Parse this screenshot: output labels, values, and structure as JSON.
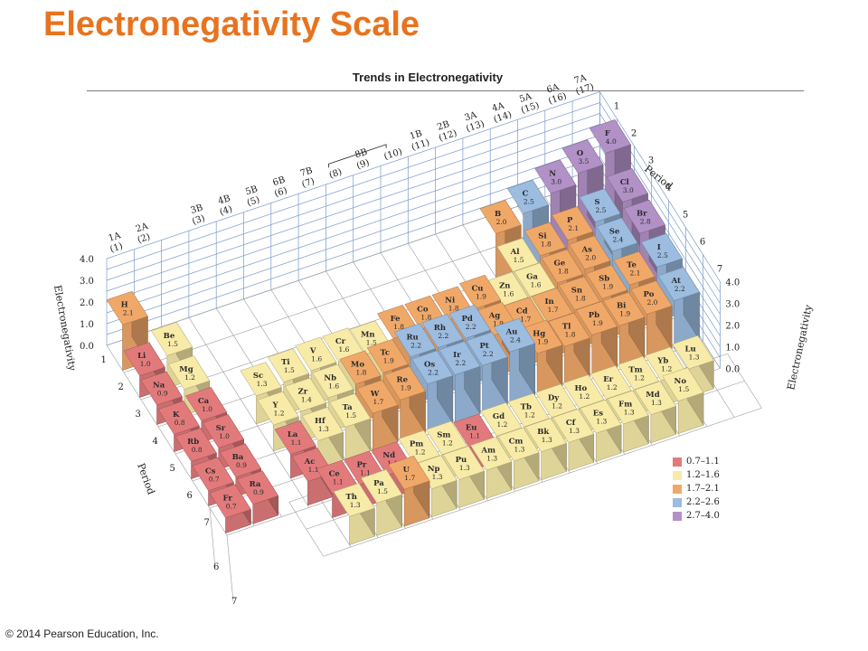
{
  "slide": {
    "title": "Electronegativity Scale",
    "copyright": "© 2014 Pearson Education, Inc."
  },
  "figure": {
    "title": "Trends in Electronegativity",
    "group_labels": [
      {
        "top": "1A",
        "bottom": "(1)"
      },
      {
        "top": "2A",
        "bottom": "(2)"
      },
      {
        "top": "3B",
        "bottom": "(3)"
      },
      {
        "top": "4B",
        "bottom": "(4)"
      },
      {
        "top": "5B",
        "bottom": "(5)"
      },
      {
        "top": "6B",
        "bottom": "(6)"
      },
      {
        "top": "7B",
        "bottom": "(7)"
      },
      {
        "top": "",
        "bottom": "(8)"
      },
      {
        "top": "8B",
        "bottom": "(9)"
      },
      {
        "top": "",
        "bottom": "(10)"
      },
      {
        "top": "1B",
        "bottom": "(11)"
      },
      {
        "top": "2B",
        "bottom": "(12)"
      },
      {
        "top": "3A",
        "bottom": "(13)"
      },
      {
        "top": "4A",
        "bottom": "(14)"
      },
      {
        "top": "5A",
        "bottom": "(15)"
      },
      {
        "top": "6A",
        "bottom": "(16)"
      },
      {
        "top": "7A",
        "bottom": "(17)"
      }
    ],
    "axis_labels": {
      "electronegativity_left": "Electronegativity",
      "electronegativity_right": "Electronegativity",
      "period_left": "Period",
      "period_back": "Period"
    },
    "axis_ticks": {
      "electronegativity": [
        "4.0",
        "3.0",
        "2.0",
        "1.0",
        "0.0"
      ],
      "period_left": [
        "1",
        "2",
        "3",
        "4",
        "5",
        "6",
        "7"
      ],
      "period_lower": [
        "6",
        "7"
      ],
      "period_back": [
        "1",
        "2",
        "3",
        "4",
        "5",
        "6",
        "7"
      ]
    },
    "legend": [
      {
        "label": "0.7–1.1",
        "color": "#e27a7c"
      },
      {
        "label": "1.2–1.6",
        "color": "#f8eba8"
      },
      {
        "label": "1.7–2.1",
        "color": "#f0a869"
      },
      {
        "label": "2.2–2.6",
        "color": "#9cbce0"
      },
      {
        "label": "2.7–4.0",
        "color": "#b291c7"
      }
    ]
  },
  "elements": [
    {
      "symbol": "H",
      "en": "2.1",
      "period": 1,
      "group": 1
    },
    {
      "symbol": "Li",
      "en": "1.0",
      "period": 2,
      "group": 1
    },
    {
      "symbol": "Be",
      "en": "1.5",
      "period": 2,
      "group": 2
    },
    {
      "symbol": "B",
      "en": "2.0",
      "period": 2,
      "group": 13
    },
    {
      "symbol": "C",
      "en": "2.5",
      "period": 2,
      "group": 14
    },
    {
      "symbol": "N",
      "en": "3.0",
      "period": 2,
      "group": 15
    },
    {
      "symbol": "O",
      "en": "3.5",
      "period": 2,
      "group": 16
    },
    {
      "symbol": "F",
      "en": "4.0",
      "period": 2,
      "group": 17
    },
    {
      "symbol": "Na",
      "en": "0.9",
      "period": 3,
      "group": 1
    },
    {
      "symbol": "Mg",
      "en": "1.2",
      "period": 3,
      "group": 2
    },
    {
      "symbol": "Al",
      "en": "1.5",
      "period": 3,
      "group": 13
    },
    {
      "symbol": "Si",
      "en": "1.8",
      "period": 3,
      "group": 14
    },
    {
      "symbol": "P",
      "en": "2.1",
      "period": 3,
      "group": 15
    },
    {
      "symbol": "S",
      "en": "2.5",
      "period": 3,
      "group": 16
    },
    {
      "symbol": "Cl",
      "en": "3.0",
      "period": 3,
      "group": 17
    },
    {
      "symbol": "K",
      "en": "0.8",
      "period": 4,
      "group": 1
    },
    {
      "symbol": "Ca",
      "en": "1.0",
      "period": 4,
      "group": 2
    },
    {
      "symbol": "Sc",
      "en": "1.3",
      "period": 4,
      "group": 3
    },
    {
      "symbol": "Ti",
      "en": "1.5",
      "period": 4,
      "group": 4
    },
    {
      "symbol": "V",
      "en": "1.6",
      "period": 4,
      "group": 5
    },
    {
      "symbol": "Cr",
      "en": "1.6",
      "period": 4,
      "group": 6
    },
    {
      "symbol": "Mn",
      "en": "1.5",
      "period": 4,
      "group": 7
    },
    {
      "symbol": "Fe",
      "en": "1.8",
      "period": 4,
      "group": 8
    },
    {
      "symbol": "Co",
      "en": "1.8",
      "period": 4,
      "group": 9
    },
    {
      "symbol": "Ni",
      "en": "1.8",
      "period": 4,
      "group": 10
    },
    {
      "symbol": "Cu",
      "en": "1.9",
      "period": 4,
      "group": 11
    },
    {
      "symbol": "Zn",
      "en": "1.6",
      "period": 4,
      "group": 12
    },
    {
      "symbol": "Ga",
      "en": "1.6",
      "period": 4,
      "group": 13
    },
    {
      "symbol": "Ge",
      "en": "1.8",
      "period": 4,
      "group": 14
    },
    {
      "symbol": "As",
      "en": "2.0",
      "period": 4,
      "group": 15
    },
    {
      "symbol": "Se",
      "en": "2.4",
      "period": 4,
      "group": 16
    },
    {
      "symbol": "Br",
      "en": "2.8",
      "period": 4,
      "group": 17
    },
    {
      "symbol": "Rb",
      "en": "0.8",
      "period": 5,
      "group": 1
    },
    {
      "symbol": "Sr",
      "en": "1.0",
      "period": 5,
      "group": 2
    },
    {
      "symbol": "Y",
      "en": "1.2",
      "period": 5,
      "group": 3
    },
    {
      "symbol": "Zr",
      "en": "1.4",
      "period": 5,
      "group": 4
    },
    {
      "symbol": "Nb",
      "en": "1.6",
      "period": 5,
      "group": 5
    },
    {
      "symbol": "Mo",
      "en": "1.8",
      "period": 5,
      "group": 6
    },
    {
      "symbol": "Tc",
      "en": "1.9",
      "period": 5,
      "group": 7
    },
    {
      "symbol": "Ru",
      "en": "2.2",
      "period": 5,
      "group": 8
    },
    {
      "symbol": "Rh",
      "en": "2.2",
      "period": 5,
      "group": 9
    },
    {
      "symbol": "Pd",
      "en": "2.2",
      "period": 5,
      "group": 10
    },
    {
      "symbol": "Ag",
      "en": "1.9",
      "period": 5,
      "group": 11
    },
    {
      "symbol": "Cd",
      "en": "1.7",
      "period": 5,
      "group": 12
    },
    {
      "symbol": "In",
      "en": "1.7",
      "period": 5,
      "group": 13
    },
    {
      "symbol": "Sn",
      "en": "1.8",
      "period": 5,
      "group": 14
    },
    {
      "symbol": "Sb",
      "en": "1.9",
      "period": 5,
      "group": 15
    },
    {
      "symbol": "Te",
      "en": "2.1",
      "period": 5,
      "group": 16
    },
    {
      "symbol": "I",
      "en": "2.5",
      "period": 5,
      "group": 17
    },
    {
      "symbol": "Cs",
      "en": "0.7",
      "period": 6,
      "group": 1
    },
    {
      "symbol": "Ba",
      "en": "0.9",
      "period": 6,
      "group": 2
    },
    {
      "symbol": "La",
      "en": "1.1",
      "period": 6,
      "group": 3
    },
    {
      "symbol": "Hf",
      "en": "1.3",
      "period": 6,
      "group": 4
    },
    {
      "symbol": "Ta",
      "en": "1.5",
      "period": 6,
      "group": 5
    },
    {
      "symbol": "W",
      "en": "1.7",
      "period": 6,
      "group": 6
    },
    {
      "symbol": "Re",
      "en": "1.9",
      "period": 6,
      "group": 7
    },
    {
      "symbol": "Os",
      "en": "2.2",
      "period": 6,
      "group": 8
    },
    {
      "symbol": "Ir",
      "en": "2.2",
      "period": 6,
      "group": 9
    },
    {
      "symbol": "Pt",
      "en": "2.2",
      "period": 6,
      "group": 10
    },
    {
      "symbol": "Au",
      "en": "2.4",
      "period": 6,
      "group": 11
    },
    {
      "symbol": "Hg",
      "en": "1.9",
      "period": 6,
      "group": 12
    },
    {
      "symbol": "Tl",
      "en": "1.8",
      "period": 6,
      "group": 13
    },
    {
      "symbol": "Pb",
      "en": "1.9",
      "period": 6,
      "group": 14
    },
    {
      "symbol": "Bi",
      "en": "1.9",
      "period": 6,
      "group": 15
    },
    {
      "symbol": "Po",
      "en": "2.0",
      "period": 6,
      "group": 16
    },
    {
      "symbol": "At",
      "en": "2.2",
      "period": 6,
      "group": 17
    },
    {
      "symbol": "Fr",
      "en": "0.7",
      "period": 7,
      "group": 1
    },
    {
      "symbol": "Ra",
      "en": "0.9",
      "period": 7,
      "group": 2
    },
    {
      "symbol": "Ac",
      "en": "1.1",
      "period": 7,
      "group": 3
    }
  ],
  "f_block": [
    {
      "symbol": "Ce",
      "en": "1.1",
      "row": 6,
      "col": 1
    },
    {
      "symbol": "Pr",
      "en": "1.1",
      "row": 6,
      "col": 2
    },
    {
      "symbol": "Nd",
      "en": "1.1",
      "row": 6,
      "col": 3
    },
    {
      "symbol": "Pm",
      "en": "1.2",
      "row": 6,
      "col": 4
    },
    {
      "symbol": "Sm",
      "en": "1.2",
      "row": 6,
      "col": 5
    },
    {
      "symbol": "Eu",
      "en": "1.1",
      "row": 6,
      "col": 6
    },
    {
      "symbol": "Gd",
      "en": "1.2",
      "row": 6,
      "col": 7
    },
    {
      "symbol": "Tb",
      "en": "1.2",
      "row": 6,
      "col": 8
    },
    {
      "symbol": "Dy",
      "en": "1.2",
      "row": 6,
      "col": 9
    },
    {
      "symbol": "Ho",
      "en": "1.2",
      "row": 6,
      "col": 10
    },
    {
      "symbol": "Er",
      "en": "1.2",
      "row": 6,
      "col": 11
    },
    {
      "symbol": "Tm",
      "en": "1.2",
      "row": 6,
      "col": 12
    },
    {
      "symbol": "Yb",
      "en": "1.2",
      "row": 6,
      "col": 13
    },
    {
      "symbol": "Lu",
      "en": "1.3",
      "row": 6,
      "col": 14
    },
    {
      "symbol": "Th",
      "en": "1.3",
      "row": 7,
      "col": 1
    },
    {
      "symbol": "Pa",
      "en": "1.5",
      "row": 7,
      "col": 2
    },
    {
      "symbol": "U",
      "en": "1.7",
      "row": 7,
      "col": 3
    },
    {
      "symbol": "Np",
      "en": "1.3",
      "row": 7,
      "col": 4
    },
    {
      "symbol": "Pu",
      "en": "1.3",
      "row": 7,
      "col": 5
    },
    {
      "symbol": "Am",
      "en": "1.3",
      "row": 7,
      "col": 6
    },
    {
      "symbol": "Cm",
      "en": "1.3",
      "row": 7,
      "col": 7
    },
    {
      "symbol": "Bk",
      "en": "1.3",
      "row": 7,
      "col": 8
    },
    {
      "symbol": "Cf",
      "en": "1.3",
      "row": 7,
      "col": 9
    },
    {
      "symbol": "Es",
      "en": "1.3",
      "row": 7,
      "col": 10
    },
    {
      "symbol": "Fm",
      "en": "1.3",
      "row": 7,
      "col": 11
    },
    {
      "symbol": "Md",
      "en": "1.3",
      "row": 7,
      "col": 12
    },
    {
      "symbol": "No",
      "en": "1.5",
      "row": 7,
      "col": 13
    }
  ]
}
